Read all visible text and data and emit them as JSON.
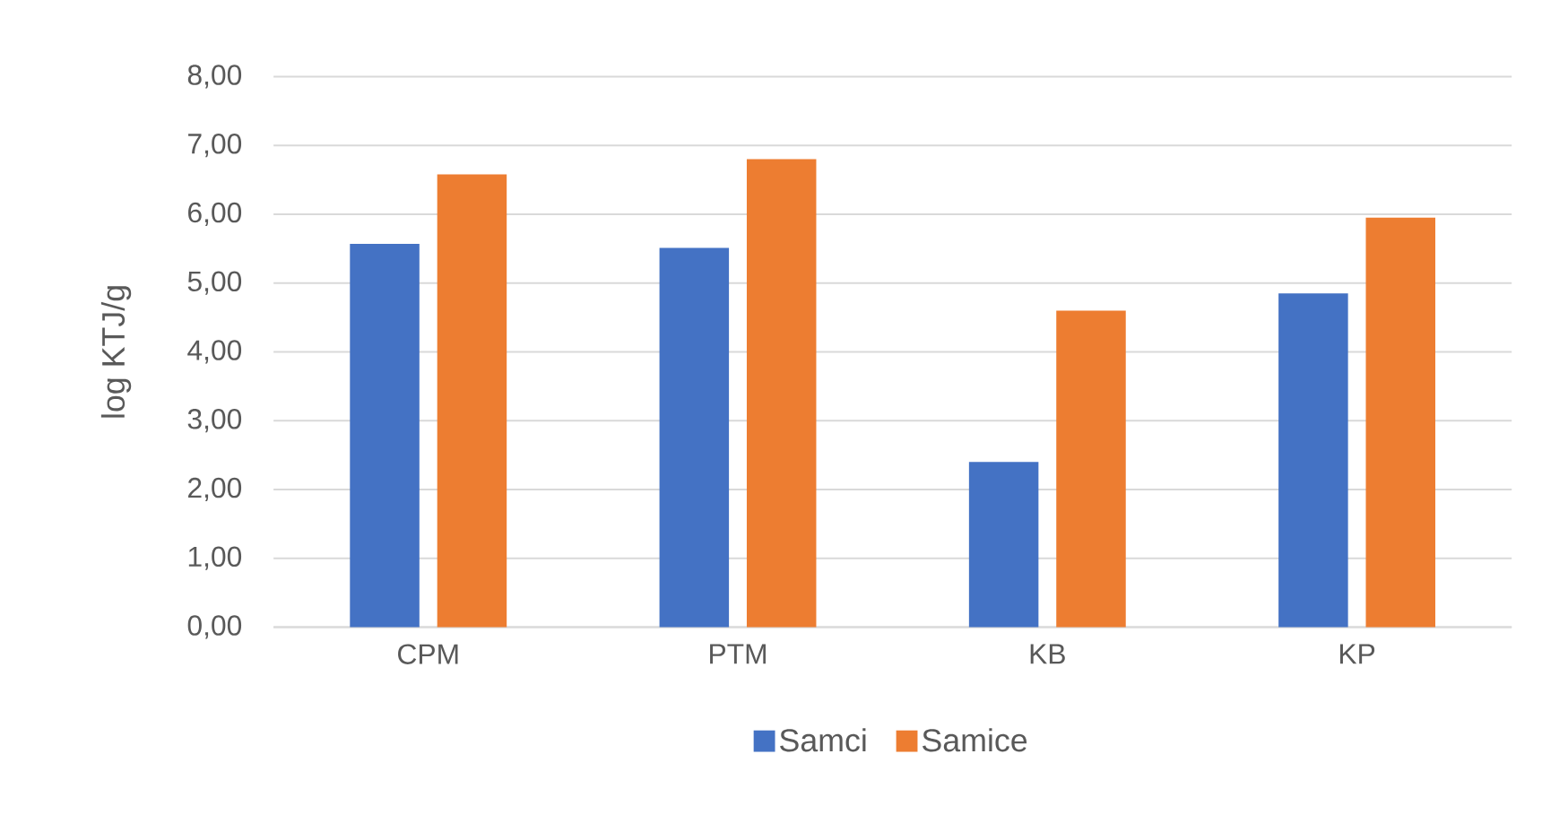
{
  "chart_data": {
    "type": "bar",
    "ylabel": "log KTJ/g",
    "categories": [
      "CPM",
      "PTM",
      "KB",
      "KP"
    ],
    "series": [
      {
        "name": "Samci",
        "color": "#4472c4",
        "values": [
          5.57,
          5.51,
          2.4,
          4.85
        ]
      },
      {
        "name": "Samice",
        "color": "#ed7d31",
        "values": [
          6.58,
          6.8,
          4.6,
          5.95
        ]
      }
    ],
    "ylim": [
      0,
      8
    ],
    "yticks": [
      {
        "value": 0,
        "label": "0,00"
      },
      {
        "value": 1,
        "label": "1,00"
      },
      {
        "value": 2,
        "label": "2,00"
      },
      {
        "value": 3,
        "label": "3,00"
      },
      {
        "value": 4,
        "label": "4,00"
      },
      {
        "value": 5,
        "label": "5,00"
      },
      {
        "value": 6,
        "label": "6,00"
      },
      {
        "value": 7,
        "label": "7,00"
      },
      {
        "value": 8,
        "label": "8,00"
      }
    ],
    "grid": "y",
    "legend": "bottom"
  }
}
